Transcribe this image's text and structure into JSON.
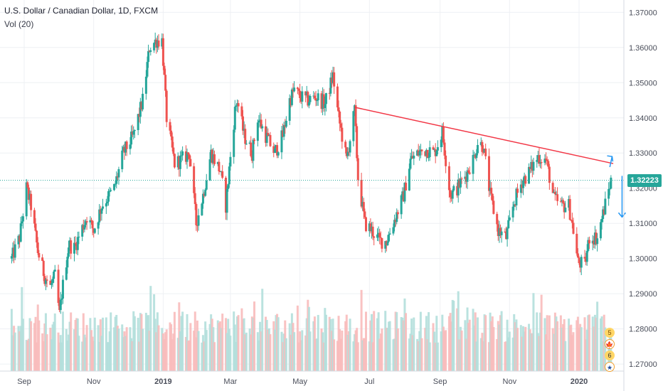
{
  "header": {
    "symbol_title": "U.S. Dollar / Canadian Dollar, 1D, FXCM",
    "volume_label": "Vol (20)"
  },
  "last_price": "1.32223",
  "event_badges": [
    "5",
    "6"
  ],
  "colors": {
    "up": "#26a69a",
    "down": "#ef5350",
    "trendline": "#f23645",
    "arrow": "#2196f3",
    "price_line": "#26a69a",
    "grid": "#eef0f4"
  },
  "chart_data": {
    "type": "candlestick",
    "title": "U.S. Dollar / Canadian Dollar, 1D, FXCM",
    "ylim": [
      1.268,
      1.3735
    ],
    "y_ticks": [
      "1.37000",
      "1.36000",
      "1.35000",
      "1.34000",
      "1.33000",
      "1.32000",
      "1.31000",
      "1.30000",
      "1.29000",
      "1.28000",
      "1.27000"
    ],
    "x_ticks": [
      "Sep",
      "Nov",
      "2019",
      "Mar",
      "May",
      "Jul",
      "Sep",
      "Nov",
      "2020"
    ],
    "grid": true,
    "anchors": [
      [
        "2018-08-21",
        1.3
      ],
      [
        "2018-08-28",
        1.306
      ],
      [
        "2018-09-03",
        1.32
      ],
      [
        "2018-09-07",
        1.315
      ],
      [
        "2018-09-13",
        1.302
      ],
      [
        "2018-09-19",
        1.295
      ],
      [
        "2018-09-24",
        1.292
      ],
      [
        "2018-09-28",
        1.295
      ],
      [
        "2018-10-02",
        1.284
      ],
      [
        "2018-10-04",
        1.29
      ],
      [
        "2018-10-10",
        1.304
      ],
      [
        "2018-10-15",
        1.303
      ],
      [
        "2018-10-26",
        1.312
      ],
      [
        "2018-11-01",
        1.308
      ],
      [
        "2018-11-08",
        1.315
      ],
      [
        "2018-11-19",
        1.32
      ],
      [
        "2018-11-27",
        1.33
      ],
      [
        "2018-12-06",
        1.335
      ],
      [
        "2018-12-14",
        1.345
      ],
      [
        "2018-12-20",
        1.36
      ],
      [
        "2018-12-26",
        1.362
      ],
      [
        "2018-12-31",
        1.362
      ],
      [
        "2019-01-04",
        1.34
      ],
      [
        "2019-01-11",
        1.327
      ],
      [
        "2019-01-17",
        1.328
      ],
      [
        "2019-01-24",
        1.33
      ],
      [
        "2019-01-30",
        1.31
      ],
      [
        "2019-02-05",
        1.318
      ],
      [
        "2019-02-12",
        1.33
      ],
      [
        "2019-02-20",
        1.325
      ],
      [
        "2019-02-25",
        1.315
      ],
      [
        "2019-03-01",
        1.329
      ],
      [
        "2019-03-05",
        1.342
      ],
      [
        "2019-03-07",
        1.345
      ],
      [
        "2019-03-13",
        1.335
      ],
      [
        "2019-03-20",
        1.33
      ],
      [
        "2019-03-25",
        1.34
      ],
      [
        "2019-04-01",
        1.335
      ],
      [
        "2019-04-09",
        1.33
      ],
      [
        "2019-04-16",
        1.335
      ],
      [
        "2019-04-22",
        1.345
      ],
      [
        "2019-04-26",
        1.348
      ],
      [
        "2019-05-01",
        1.346
      ],
      [
        "2019-05-08",
        1.345
      ],
      [
        "2019-05-15",
        1.346
      ],
      [
        "2019-05-23",
        1.344
      ],
      [
        "2019-05-30",
        1.352
      ],
      [
        "2019-06-04",
        1.34
      ],
      [
        "2019-06-11",
        1.328
      ],
      [
        "2019-06-18",
        1.342
      ],
      [
        "2019-06-21",
        1.323
      ],
      [
        "2019-06-27",
        1.31
      ],
      [
        "2019-07-03",
        1.308
      ],
      [
        "2019-07-10",
        1.305
      ],
      [
        "2019-07-16",
        1.305
      ],
      [
        "2019-07-23",
        1.311
      ],
      [
        "2019-07-31",
        1.318
      ],
      [
        "2019-08-06",
        1.328
      ],
      [
        "2019-08-13",
        1.33
      ],
      [
        "2019-08-20",
        1.331
      ],
      [
        "2019-08-27",
        1.33
      ],
      [
        "2019-09-03",
        1.336
      ],
      [
        "2019-09-10",
        1.318
      ],
      [
        "2019-09-16",
        1.32
      ],
      [
        "2019-09-24",
        1.324
      ],
      [
        "2019-10-01",
        1.329
      ],
      [
        "2019-10-04",
        1.333
      ],
      [
        "2019-10-09",
        1.332
      ],
      [
        "2019-10-15",
        1.318
      ],
      [
        "2019-10-22",
        1.308
      ],
      [
        "2019-10-29",
        1.306
      ],
      [
        "2019-11-05",
        1.316
      ],
      [
        "2019-11-12",
        1.322
      ],
      [
        "2019-11-19",
        1.325
      ],
      [
        "2019-11-26",
        1.329
      ],
      [
        "2019-12-03",
        1.328
      ],
      [
        "2019-12-10",
        1.317
      ],
      [
        "2019-12-17",
        1.315
      ],
      [
        "2019-12-23",
        1.315
      ],
      [
        "2019-12-27",
        1.308
      ],
      [
        "2019-12-31",
        1.299
      ],
      [
        "2020-01-06",
        1.298
      ],
      [
        "2020-01-10",
        1.306
      ],
      [
        "2020-01-17",
        1.306
      ],
      [
        "2020-01-23",
        1.314
      ],
      [
        "2020-01-29",
        1.3222
      ]
    ],
    "trendline": [
      [
        "2019-06-18",
        1.343
      ],
      [
        "2020-01-31",
        1.327
      ]
    ],
    "last_close": 1.32223,
    "projection_up": [
      [
        "2020-01-28",
        1.326
      ],
      [
        "2020-01-30",
        1.329
      ]
    ],
    "projection_down": [
      [
        "2020-01-30",
        1.3235
      ],
      [
        "2020-01-30",
        1.3118
      ]
    ]
  }
}
